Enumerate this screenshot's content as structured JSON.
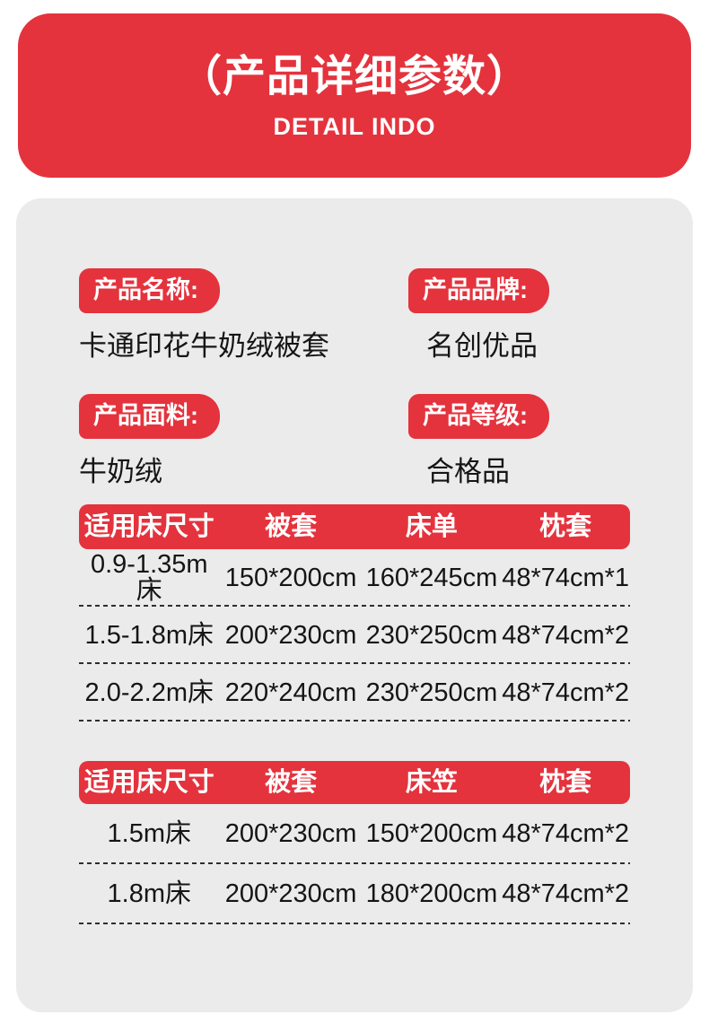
{
  "banner": {
    "title": "（产品详细参数）",
    "subtitle": "DETAIL INDO"
  },
  "fields": [
    {
      "label": "产品名称:",
      "value": "卡通印花牛奶绒被套"
    },
    {
      "label": "产品品牌:",
      "value": "名创优品"
    },
    {
      "label": "产品面料:",
      "value": "牛奶绒"
    },
    {
      "label": "产品等级:",
      "value": "合格品"
    }
  ],
  "tables": [
    {
      "headers": [
        "适用床尺寸",
        "被套",
        "床单",
        "枕套"
      ],
      "rows": [
        [
          "0.9-1.35m床",
          "150*200cm",
          "160*245cm",
          "48*74cm*1"
        ],
        [
          "1.5-1.8m床",
          "200*230cm",
          "230*250cm",
          "48*74cm*2"
        ],
        [
          "2.0-2.2m床",
          "220*240cm",
          "230*250cm",
          "48*74cm*2"
        ]
      ]
    },
    {
      "headers": [
        "适用床尺寸",
        "被套",
        "床笠",
        "枕套"
      ],
      "rows": [
        [
          "1.5m床",
          "200*230cm",
          "150*200cm",
          "48*74cm*2"
        ],
        [
          "1.8m床",
          "200*230cm",
          "180*200cm",
          "48*74cm*2"
        ]
      ]
    }
  ],
  "colors": {
    "brand_red": "#e4333d",
    "panel_gray": "#ebebeb",
    "text_dark": "#151515"
  }
}
